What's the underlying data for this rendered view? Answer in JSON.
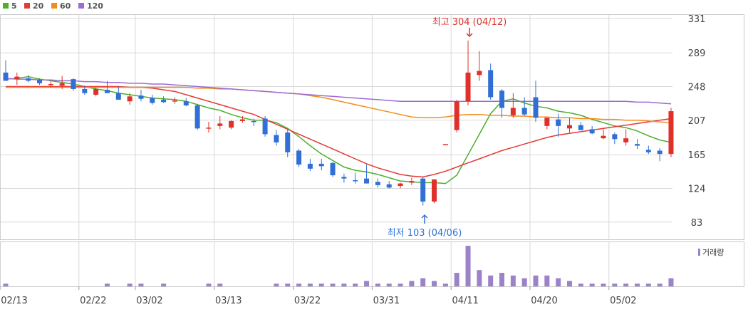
{
  "legend": [
    {
      "label": "5",
      "color": "#4caf2e"
    },
    {
      "label": "20",
      "color": "#e53935"
    },
    {
      "label": "60",
      "color": "#f28c1f"
    },
    {
      "label": "120",
      "color": "#9c6bd6"
    }
  ],
  "colors": {
    "up": "#e0302a",
    "down": "#2f6fd6",
    "grid": "#d8d8d8",
    "volume": "#9b82c9",
    "high_annotation": "#e0302a",
    "low_annotation": "#2f6fd6"
  },
  "annotations": {
    "high": "최고 304 (04/12)",
    "low": "최저 103 (04/06)"
  },
  "volume_legend": "거래량",
  "chart_data": {
    "type": "candlestick",
    "ylim": [
      62,
      336
    ],
    "yticks": [
      331,
      289,
      248,
      207,
      165,
      124,
      83
    ],
    "xtick_labels": [
      "02/13",
      "02/22",
      "03/02",
      "03/13",
      "03/22",
      "03/31",
      "04/11",
      "04/20",
      "05/02"
    ],
    "xtick_index": [
      0,
      7,
      12,
      19,
      26,
      33,
      40,
      47,
      54
    ],
    "grid": true,
    "candles": [
      [
        265,
        280,
        255,
        255
      ],
      [
        257,
        265,
        250,
        260
      ],
      [
        258,
        262,
        253,
        255
      ],
      [
        256,
        258,
        250,
        252
      ],
      [
        250,
        255,
        247,
        251
      ],
      [
        249,
        261,
        245,
        252
      ],
      [
        257,
        258,
        243,
        245
      ],
      [
        245,
        249,
        238,
        240
      ],
      [
        238,
        247,
        236,
        245
      ],
      [
        244,
        255,
        240,
        240
      ],
      [
        240,
        248,
        232,
        232
      ],
      [
        230,
        240,
        226,
        236
      ],
      [
        237,
        244,
        230,
        233
      ],
      [
        234,
        238,
        226,
        228
      ],
      [
        232,
        236,
        228,
        229
      ],
      [
        231,
        235,
        227,
        231
      ],
      [
        230,
        234,
        224,
        225
      ],
      [
        225,
        227,
        195,
        197
      ],
      [
        198,
        205,
        192,
        198
      ],
      [
        200,
        212,
        196,
        203
      ],
      [
        198,
        207,
        196,
        206
      ],
      [
        206,
        212,
        204,
        208
      ],
      [
        206,
        209,
        200,
        205
      ],
      [
        209,
        212,
        187,
        190
      ],
      [
        189,
        195,
        176,
        180
      ],
      [
        192,
        196,
        162,
        168
      ],
      [
        170,
        172,
        150,
        153
      ],
      [
        154,
        160,
        145,
        148
      ],
      [
        154,
        160,
        146,
        151
      ],
      [
        155,
        156,
        138,
        140
      ],
      [
        138,
        142,
        131,
        136
      ],
      [
        134,
        143,
        130,
        133
      ],
      [
        136,
        153,
        130,
        130
      ],
      [
        132,
        136,
        125,
        128
      ],
      [
        129,
        133,
        124,
        125
      ],
      [
        127,
        131,
        124,
        130
      ],
      [
        131,
        137,
        128,
        133
      ],
      [
        136,
        138,
        103,
        108
      ],
      [
        108,
        135,
        106,
        135
      ],
      [
        178,
        178,
        178,
        178
      ],
      [
        195,
        232,
        192,
        230
      ],
      [
        230,
        304,
        225,
        265
      ],
      [
        262,
        291,
        255,
        267
      ],
      [
        268,
        276,
        232,
        235
      ],
      [
        243,
        245,
        210,
        222
      ],
      [
        213,
        240,
        210,
        222
      ],
      [
        222,
        235,
        212,
        214
      ],
      [
        235,
        255,
        205,
        210
      ],
      [
        200,
        208,
        196,
        210
      ],
      [
        208,
        215,
        187,
        200
      ],
      [
        197,
        210,
        192,
        201
      ],
      [
        201,
        205,
        195,
        195
      ],
      [
        196,
        200,
        190,
        191
      ],
      [
        185,
        196,
        184,
        188
      ],
      [
        190,
        192,
        178,
        184
      ],
      [
        180,
        196,
        176,
        185
      ],
      [
        178,
        184,
        172,
        176
      ],
      [
        171,
        176,
        166,
        168
      ],
      [
        170,
        173,
        157,
        166
      ],
      [
        166,
        222,
        162,
        218
      ]
    ],
    "volume": [
      1,
      0,
      0,
      0,
      0,
      0,
      0,
      0,
      0,
      1,
      0,
      1,
      1,
      0,
      1,
      0,
      0,
      0,
      1,
      1,
      0,
      0,
      0,
      0,
      1,
      1,
      1,
      1,
      1,
      1,
      1,
      1,
      2,
      1,
      1,
      1,
      2,
      3,
      2,
      1,
      5,
      15,
      6,
      4,
      5,
      4,
      3,
      4,
      4,
      3,
      2,
      1,
      1,
      1,
      1,
      1,
      1,
      1,
      1,
      3
    ],
    "series": [
      {
        "name": "5",
        "values": [
          257,
          258,
          260,
          257,
          255,
          253,
          251,
          248,
          245,
          243,
          240,
          238,
          236,
          234,
          233,
          232,
          230,
          226,
          222,
          219,
          214,
          210,
          207,
          207,
          204,
          197,
          187,
          176,
          166,
          158,
          150,
          146,
          144,
          141,
          137,
          133,
          132,
          131,
          131,
          130,
          140,
          165,
          190,
          215,
          230,
          233,
          228,
          224,
          222,
          218,
          216,
          213,
          208,
          204,
          200,
          198,
          194,
          188,
          183,
          180
        ]
      },
      {
        "name": "20",
        "values": [
          248,
          248,
          248,
          248,
          248,
          248,
          248,
          248,
          248,
          248,
          248,
          247,
          247,
          246,
          244,
          242,
          238,
          234,
          230,
          226,
          222,
          218,
          214,
          208,
          202,
          196,
          190,
          184,
          178,
          172,
          166,
          160,
          154,
          149,
          145,
          141,
          139,
          138,
          141,
          145,
          150,
          155,
          160,
          165,
          170,
          174,
          178,
          182,
          186,
          189,
          191,
          193,
          195,
          197,
          199,
          201,
          203,
          205,
          207,
          209
        ]
      },
      {
        "name": "60",
        "values": [
          247,
          247,
          247,
          247,
          247,
          247,
          247,
          247,
          247,
          247,
          247,
          247,
          247,
          247,
          247,
          247,
          247,
          246,
          246,
          245,
          245,
          244,
          243,
          242,
          241,
          240,
          239,
          237,
          235,
          232,
          229,
          226,
          223,
          220,
          217,
          214,
          211,
          210,
          210,
          211,
          213,
          214,
          214,
          213,
          213,
          212,
          212,
          211,
          211,
          210,
          210,
          209,
          209,
          208,
          208,
          207,
          207,
          206,
          205,
          204
        ]
      },
      {
        "name": "120",
        "values": [
          258,
          257,
          257,
          256,
          256,
          255,
          255,
          254,
          254,
          253,
          253,
          252,
          252,
          251,
          251,
          250,
          249,
          248,
          247,
          246,
          245,
          244,
          243,
          242,
          241,
          240,
          239,
          238,
          237,
          236,
          235,
          234,
          233,
          232,
          231,
          230,
          230,
          230,
          230,
          230,
          230,
          230,
          230,
          230,
          230,
          230,
          230,
          230,
          230,
          230,
          230,
          230,
          230,
          230,
          230,
          230,
          229,
          229,
          228,
          227
        ]
      }
    ]
  }
}
